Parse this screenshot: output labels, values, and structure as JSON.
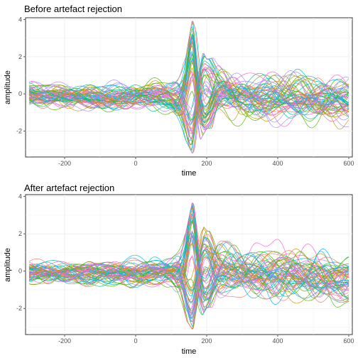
{
  "chart_data": [
    {
      "type": "line",
      "title": "Before artefact rejection",
      "xlabel": "time",
      "ylabel": "amplitude",
      "xlim": [
        -310,
        610
      ],
      "ylim": [
        -3.4,
        4.1
      ],
      "xticks": [
        -200,
        0,
        200,
        400,
        600
      ],
      "yticks": [
        -2,
        0,
        2,
        4
      ],
      "grid": true,
      "legend": "none",
      "n_series": 64,
      "envelope": {
        "x": [
          -300,
          -200,
          -100,
          0,
          100,
          140,
          160,
          180,
          200,
          250,
          300,
          400,
          500,
          600
        ],
        "upper": [
          0.9,
          0.8,
          0.8,
          1.0,
          1.0,
          1.9,
          4.1,
          2.7,
          1.9,
          2.1,
          1.9,
          1.6,
          1.6,
          1.3
        ],
        "lower": [
          -1.0,
          -1.1,
          -1.2,
          -1.3,
          -1.3,
          -2.5,
          -3.3,
          -2.6,
          -1.9,
          -1.9,
          -2.0,
          -2.1,
          -2.1,
          -2.1
        ]
      },
      "seed": 11
    },
    {
      "type": "line",
      "title": "After artefact rejection",
      "xlabel": "time",
      "ylabel": "amplitude",
      "xlim": [
        -310,
        610
      ],
      "ylim": [
        -3.4,
        4.1
      ],
      "xticks": [
        -200,
        0,
        200,
        400,
        600
      ],
      "yticks": [
        -2,
        0,
        2,
        4
      ],
      "grid": true,
      "legend": "none",
      "n_series": 64,
      "envelope": {
        "x": [
          -300,
          -200,
          -100,
          0,
          100,
          140,
          160,
          180,
          200,
          250,
          300,
          400,
          500,
          600
        ],
        "upper": [
          0.9,
          0.8,
          0.9,
          1.0,
          1.0,
          2.0,
          3.8,
          2.8,
          2.2,
          2.1,
          2.0,
          2.0,
          1.8,
          1.4
        ],
        "lower": [
          -1.0,
          -1.0,
          -1.1,
          -1.2,
          -1.2,
          -2.6,
          -3.2,
          -2.7,
          -2.0,
          -1.9,
          -2.0,
          -2.2,
          -2.4,
          -2.3
        ]
      },
      "seed": 29
    }
  ],
  "colors": [
    "#F8766D",
    "#C49A00",
    "#53B400",
    "#00C094",
    "#00B6EB",
    "#A58AFF",
    "#FB61D7"
  ]
}
